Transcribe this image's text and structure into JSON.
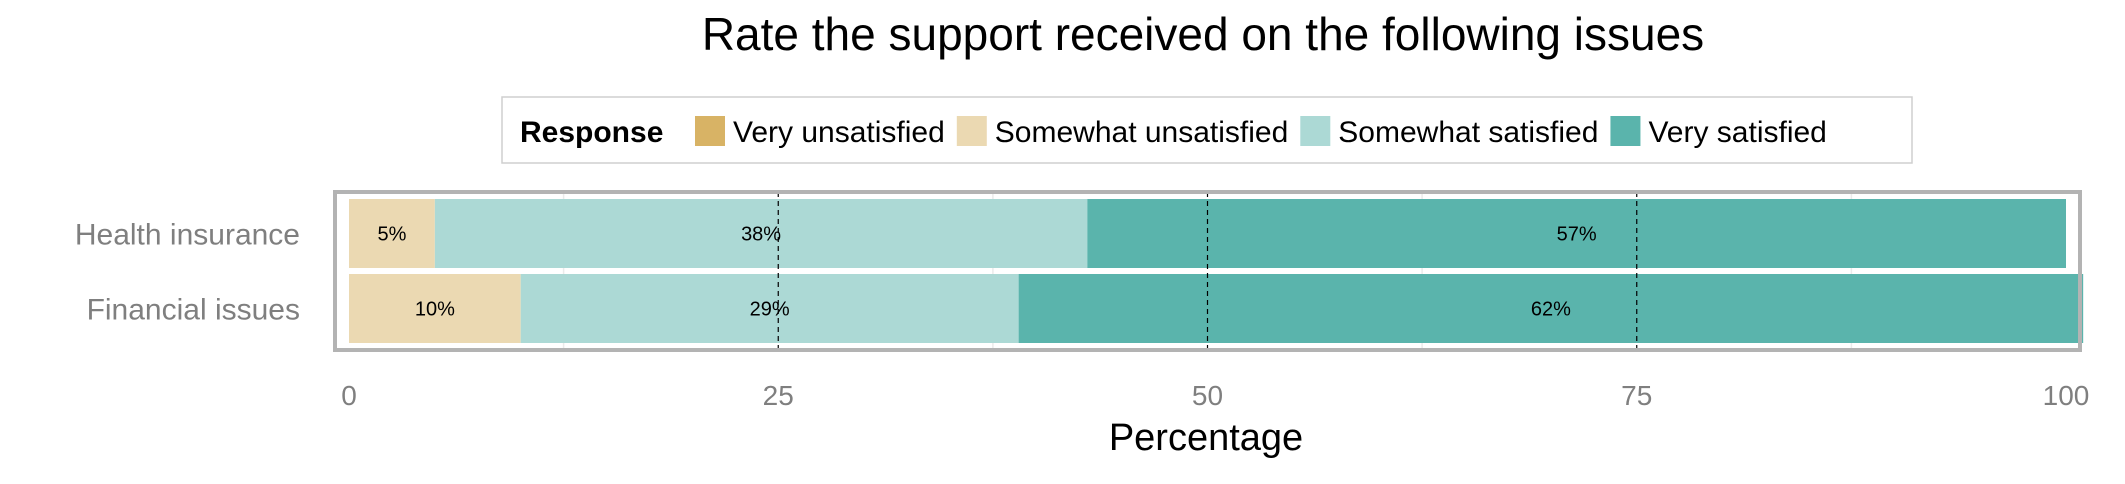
{
  "chart_data": {
    "type": "bar",
    "orientation": "horizontal",
    "stacked": true,
    "title": "Rate the support received on the following issues",
    "xlabel": "Percentage",
    "ylabel": "",
    "xlim": [
      0,
      100
    ],
    "x_ticks": [
      "0",
      "25",
      "50",
      "75",
      "100"
    ],
    "grid": true,
    "legend": {
      "title": "Response",
      "position": "top",
      "entries": [
        {
          "name": "Very unsatisfied",
          "color": "#d8b365"
        },
        {
          "name": "Somewhat unsatisfied",
          "color": "#ebd9b2"
        },
        {
          "name": "Somewhat satisfied",
          "color": "#acd9d5"
        },
        {
          "name": "Very satisfied",
          "color": "#5ab4ac"
        }
      ]
    },
    "categories": [
      "Health insurance",
      "Financial issues"
    ],
    "series": [
      {
        "name": "Very unsatisfied",
        "values": [
          0,
          0
        ],
        "labels": [
          "",
          ""
        ]
      },
      {
        "name": "Somewhat unsatisfied",
        "values": [
          5,
          10
        ],
        "labels": [
          "5%",
          "10%"
        ]
      },
      {
        "name": "Somewhat satisfied",
        "values": [
          38,
          29
        ],
        "labels": [
          "38%",
          "29%"
        ]
      },
      {
        "name": "Very satisfied",
        "values": [
          57,
          62
        ],
        "labels": [
          "57%",
          "62%"
        ]
      }
    ]
  }
}
